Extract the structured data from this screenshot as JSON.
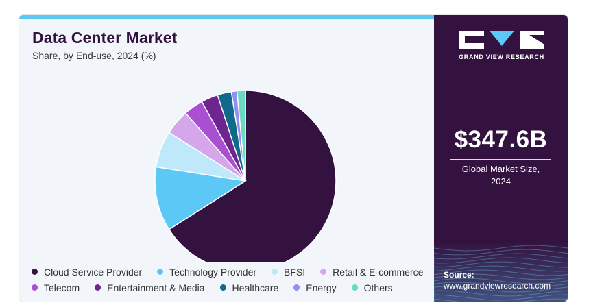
{
  "header": {
    "title": "Data Center Market",
    "subtitle": "Share, by End-use, 2024 (%)"
  },
  "brand": {
    "name": "GRAND VIEW RESEARCH",
    "market_size": "$347.6B",
    "market_label_line1": "Global Market Size,",
    "market_label_line2": "2024",
    "source_label": "Source:",
    "source_url": "www.grandviewresearch.com",
    "panel_color": "#33123f"
  },
  "chart_data": {
    "type": "pie",
    "title": "Data Center Market",
    "subtitle": "Share, by End-use, 2024 (%)",
    "legend_position": "bottom",
    "start_angle_deg": 0,
    "direction": "clockwise",
    "slices": [
      {
        "label": "Cloud Service Provider",
        "value": 66.0,
        "color": "#33123f"
      },
      {
        "label": "Technology Provider",
        "value": 11.5,
        "color": "#5bc8f5"
      },
      {
        "label": "BFSI",
        "value": 6.5,
        "color": "#bfe8fa"
      },
      {
        "label": "Retail & E-commerce",
        "value": 4.5,
        "color": "#d5a6ea"
      },
      {
        "label": "Telecom",
        "value": 3.5,
        "color": "#a94fd1"
      },
      {
        "label": "Entertainment & Media",
        "value": 3.0,
        "color": "#6e2590"
      },
      {
        "label": "Healthcare",
        "value": 2.5,
        "color": "#0f6a8c"
      },
      {
        "label": "Energy",
        "value": 1.0,
        "color": "#8f90f2"
      },
      {
        "label": "Others",
        "value": 1.5,
        "color": "#6ed9c3"
      }
    ]
  },
  "legend_rows": [
    [
      0,
      1,
      2,
      3
    ],
    [
      4,
      5,
      6,
      7,
      8
    ]
  ]
}
